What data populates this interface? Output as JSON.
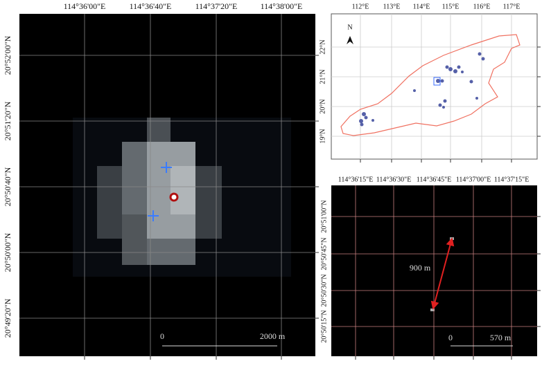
{
  "left_panel": {
    "top_labels": [
      "114°36'00\"E",
      "114°36'40\"E",
      "114°37'20\"E",
      "114°38'00\"E"
    ],
    "left_labels": [
      "20°52'00\"N",
      "20°51'20\"N",
      "20°50'40\"N",
      "20°50'00\"N",
      "20°49'20\"N"
    ],
    "scale_bar": {
      "start": "0",
      "end": "2000 m"
    }
  },
  "overview_panel": {
    "north": "N",
    "top_labels": [
      "112°E",
      "113°E",
      "114°E",
      "115°E",
      "116°E",
      "117°E"
    ],
    "left_labels": [
      "22°N",
      "21°N",
      "20°N",
      "19°N"
    ]
  },
  "detail_panel": {
    "top_labels": [
      "114°36'15\"E",
      "114°36'30\"E",
      "114°36'45\"E",
      "114°37'00\"E",
      "114°37'15\"E"
    ],
    "left_labels": [
      "20°51'00\"N",
      "20°50'45\"N",
      "20°50'30\"N",
      "20°50'15\"N"
    ],
    "distance": "900 m",
    "scale_bar": {
      "start": "0",
      "end": "570 m"
    }
  }
}
